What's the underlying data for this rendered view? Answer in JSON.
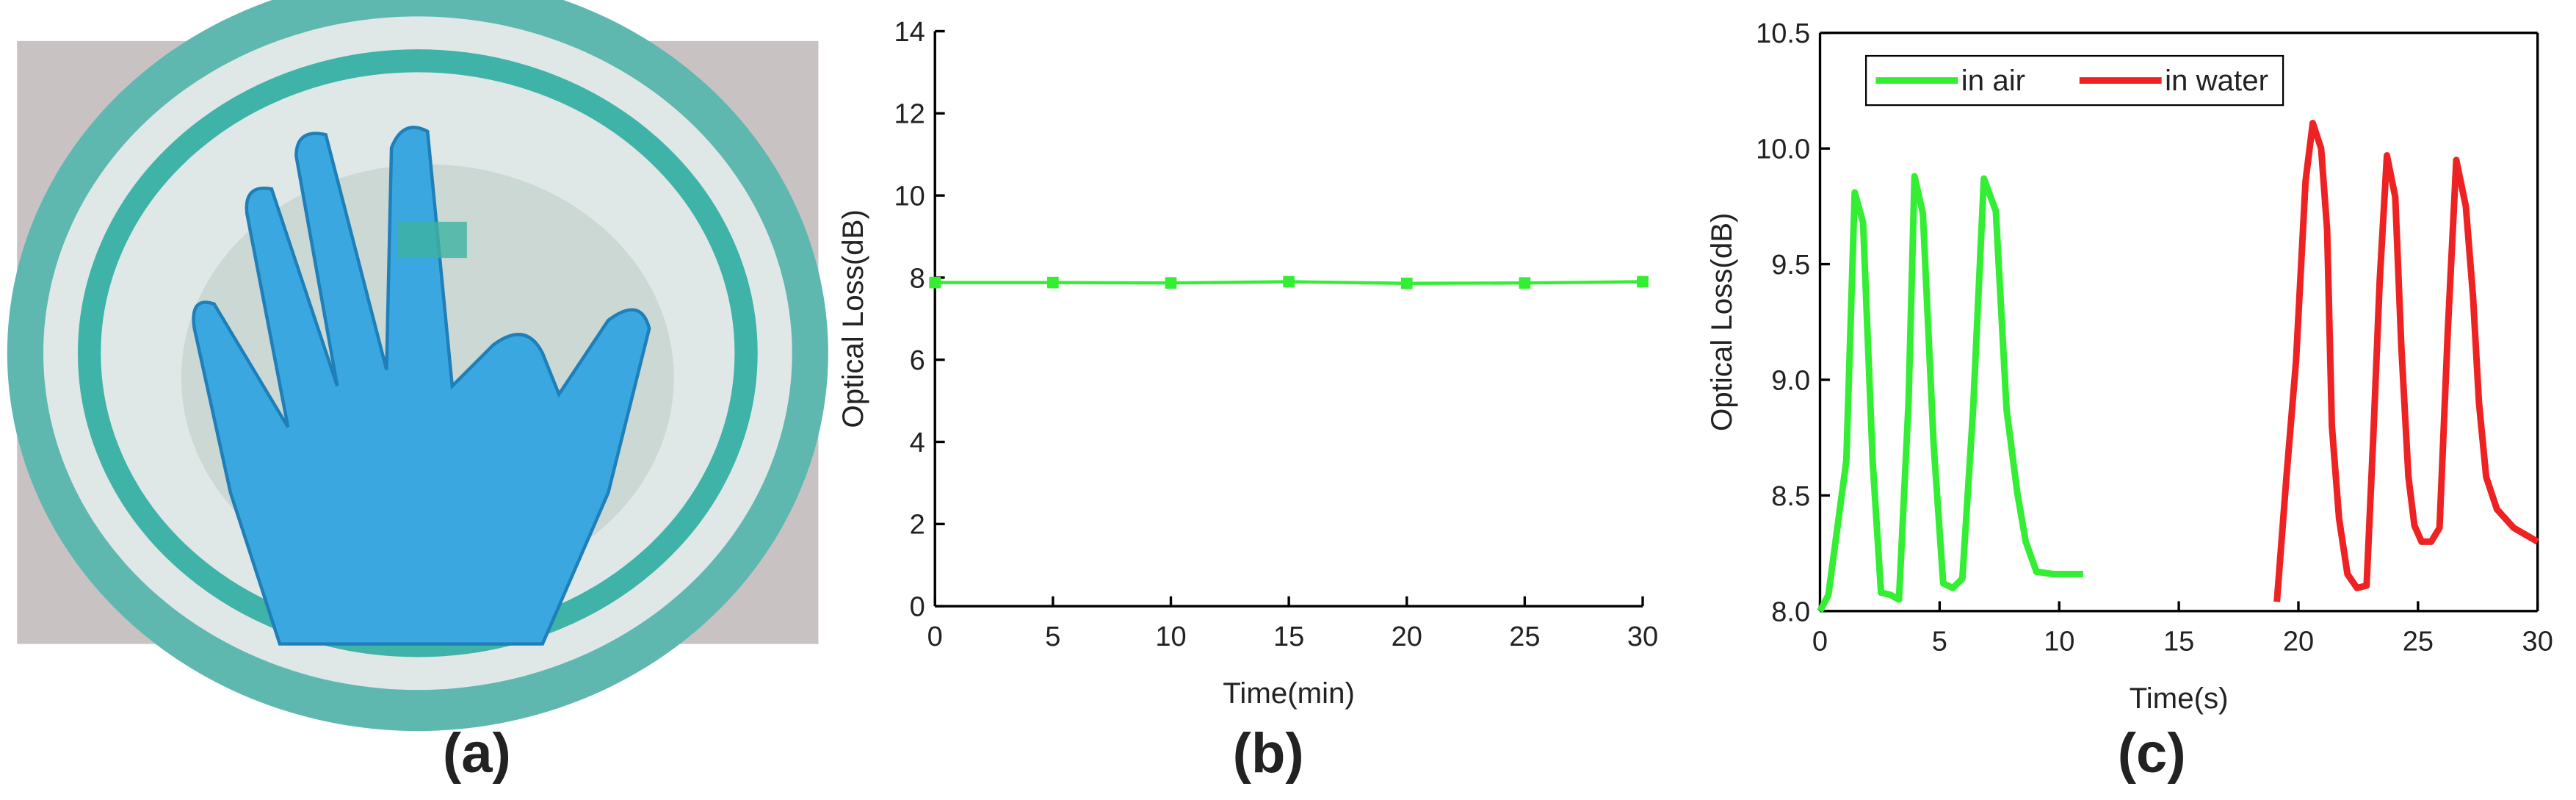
{
  "photo": {
    "caption": "(a)"
  },
  "chart_data": [
    {
      "type": "line",
      "caption": "(b)",
      "xlabel": "Time(min)",
      "ylabel": "Optical Loss(dB)",
      "x": [
        0,
        5,
        10,
        15,
        20,
        25,
        30
      ],
      "values": [
        7.88,
        7.88,
        7.87,
        7.9,
        7.86,
        7.87,
        7.9
      ],
      "color": "#33ee33",
      "marker": "square",
      "xlim": [
        0,
        30
      ],
      "xticks": [
        0,
        5,
        10,
        15,
        20,
        25,
        30
      ],
      "ylim": [
        0,
        14
      ],
      "yticks": [
        0,
        2,
        4,
        6,
        8,
        10,
        12,
        14
      ],
      "frame": false
    },
    {
      "type": "line",
      "caption": "(c)",
      "xlabel": "Time(s)",
      "ylabel": "Optical Loss(dB)",
      "legend": "upper left",
      "frame": true,
      "xlim": [
        0,
        30
      ],
      "xticks": [
        0,
        5,
        10,
        15,
        20,
        25,
        30
      ],
      "ylim": [
        8,
        10.5
      ],
      "yticks": [
        {
          "value": 8,
          "label": "8.0"
        },
        8.5,
        {
          "value": 9,
          "label": "9.0"
        },
        9.5,
        {
          "value": 10,
          "label": "10.0"
        },
        10.5
      ],
      "series": [
        {
          "name": "in air",
          "color": "#33ee33",
          "x": [
            0,
            0.35,
            1.1,
            1.45,
            1.8,
            2.2,
            2.55,
            2.95,
            3.3,
            3.7,
            3.95,
            4.3,
            4.75,
            5.15,
            5.55,
            5.95,
            6.4,
            6.85,
            7.35,
            7.8,
            8.25,
            8.6,
            9.05,
            9.75,
            11
          ],
          "values": [
            8.0,
            8.07,
            8.65,
            9.81,
            9.68,
            8.65,
            8.08,
            8.07,
            8.05,
            8.9,
            9.88,
            9.72,
            8.72,
            8.12,
            8.1,
            8.14,
            8.87,
            9.87,
            9.73,
            8.87,
            8.51,
            8.3,
            8.17,
            8.16,
            8.16
          ]
        },
        {
          "name": "in water",
          "color": "#ee2222",
          "x": [
            19.1,
            19.5,
            19.9,
            20.3,
            20.6,
            20.95,
            21.2,
            21.4,
            21.7,
            22.05,
            22.45,
            22.85,
            23.15,
            23.4,
            23.7,
            24.05,
            24.3,
            24.6,
            24.85,
            25.15,
            25.55,
            25.9,
            26.25,
            26.6,
            27.0,
            27.3,
            27.55,
            27.85,
            28.3,
            29.0,
            30
          ],
          "values": [
            8.04,
            8.58,
            9.08,
            9.86,
            10.11,
            10.0,
            9.65,
            8.8,
            8.4,
            8.16,
            8.1,
            8.11,
            8.8,
            9.43,
            9.97,
            9.79,
            9.15,
            8.58,
            8.37,
            8.3,
            8.3,
            8.36,
            9.22,
            9.95,
            9.75,
            9.36,
            8.9,
            8.58,
            8.44,
            8.36,
            8.3
          ]
        }
      ]
    }
  ]
}
